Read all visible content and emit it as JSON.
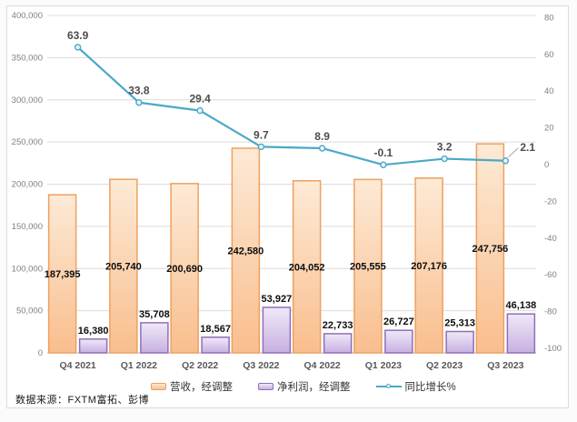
{
  "chart_data": {
    "type": "combo",
    "title": "",
    "categories": [
      "Q4 2021",
      "Q1 2022",
      "Q2 2022",
      "Q3 2022",
      "Q4 2022",
      "Q1 2023",
      "Q2 2023",
      "Q3 2023"
    ],
    "series": [
      {
        "name": "营收，经调整",
        "type": "bar",
        "axis": "left",
        "values": [
          187395,
          205740,
          200690,
          242580,
          204052,
          205555,
          207176,
          247756
        ],
        "labels": [
          "187,395",
          "205,740",
          "200,690",
          "242,580",
          "204,052",
          "205,555",
          "207,176",
          "247,756"
        ]
      },
      {
        "name": "净利润，经调整",
        "type": "bar",
        "axis": "left",
        "values": [
          16380,
          35708,
          18567,
          53927,
          22733,
          26727,
          25313,
          46138
        ],
        "labels": [
          "16,380",
          "35,708",
          "18,567",
          "53,927",
          "22,733",
          "26,727",
          "25,313",
          "46,138"
        ]
      },
      {
        "name": "同比增长%",
        "type": "line",
        "axis": "right",
        "values": [
          63.9,
          33.8,
          29.4,
          9.7,
          8.9,
          -0.1,
          3.2,
          2.1
        ],
        "labels": [
          "63.9",
          "33.8",
          "29.4",
          "9.7",
          "8.9",
          "-0.1",
          "3.2",
          "2.1"
        ]
      }
    ],
    "left_axis": {
      "min": 0,
      "max": 400000,
      "tick_labels": [
        "400,000",
        "350,000",
        "300,000",
        "250,000",
        "200,000",
        "150,000",
        "100,000",
        "50,000",
        "0"
      ]
    },
    "right_axis": {
      "min": -100,
      "max": 80,
      "tick_labels": [
        "80",
        "60",
        "40",
        "20",
        "0",
        "-20",
        "-40",
        "-60",
        "-80",
        "-100"
      ]
    },
    "grid": true,
    "legend_position": "bottom"
  },
  "colors": {
    "revenue_fill_top": "#fdead6",
    "revenue_fill_bottom": "#f9be8e",
    "revenue_border": "#efa05f",
    "profit_fill_top": "#f0e9f8",
    "profit_fill_bottom": "#c7b0e1",
    "profit_border": "#8f6fb8",
    "growth_line": "#4ba8c9",
    "gridline": "#dcdcdc",
    "axis_line": "#b3b3b3",
    "tick_text": "#7f7f7f",
    "bar_label_text": "#0d0d0d",
    "line_label_text": "#4d4d4d",
    "leader_line": "#a6a6a6"
  },
  "source": {
    "text": "数据来源：FXTM富拓、彭博"
  }
}
